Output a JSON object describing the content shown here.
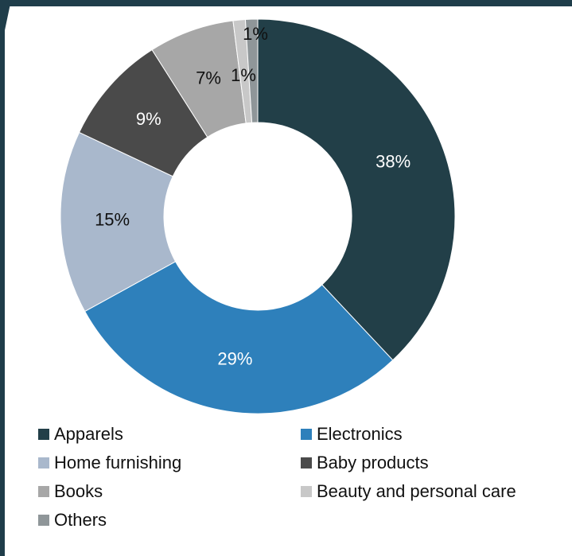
{
  "chart_data": {
    "type": "pie",
    "donut": true,
    "categories": [
      "Apparels",
      "Electronics",
      "Home furnishing",
      "Baby products",
      "Books",
      "Beauty and personal care",
      "Others"
    ],
    "values": [
      38,
      29,
      15,
      9,
      7,
      1,
      1
    ],
    "labels": [
      "38%",
      "29%",
      "15%",
      "9%",
      "7%",
      "1%",
      "1%"
    ],
    "colors": [
      "#223f48",
      "#2e80bb",
      "#a9b8cc",
      "#4a4a4a",
      "#a7a7a7",
      "#c8c8c8",
      "#8f9699"
    ],
    "label_colors": [
      "#ffffff",
      "#ffffff",
      "#111111",
      "#ffffff",
      "#111111",
      "#111111",
      "#111111"
    ],
    "legend_position": "bottom"
  },
  "theme": {
    "frame_color": "#1f3d4a"
  }
}
